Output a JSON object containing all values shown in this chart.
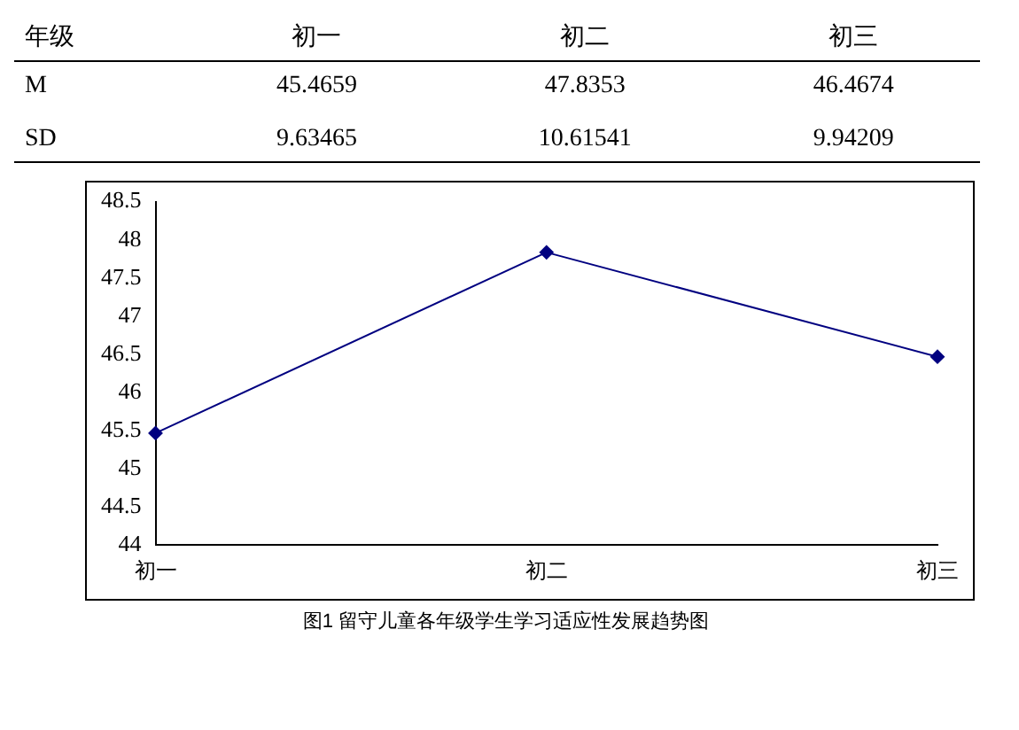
{
  "chart_data": {
    "type": "line",
    "title": "图1  留守儿童各年级学生学习适应性发展趋势图",
    "categories": [
      "初一",
      "初二",
      "初三"
    ],
    "values": [
      45.4659,
      47.8353,
      46.4674
    ],
    "value_labels": [
      "45.4659",
      "47.8353",
      "46.4674"
    ],
    "color": "#000080",
    "marker": "diamond",
    "line_style": "solid",
    "ylim": [
      44,
      48.5
    ],
    "yticks": [
      44,
      44.5,
      45,
      45.5,
      46,
      46.5,
      47,
      47.5,
      48,
      48.5
    ],
    "annotations": [
      "年级",
      "M",
      "SD",
      "9.63465",
      "10.61541",
      "9.94209"
    ],
    "grid": false,
    "legend": false
  }
}
